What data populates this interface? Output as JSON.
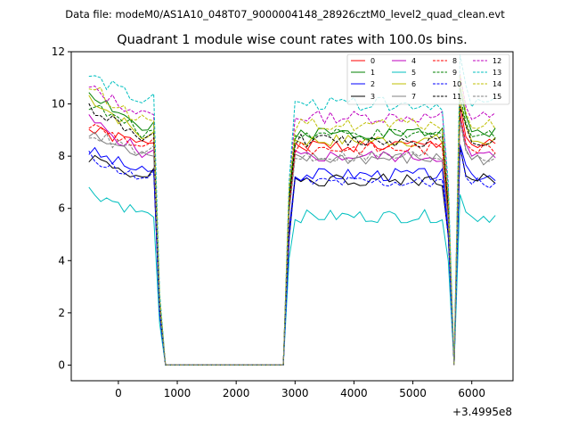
{
  "figure": {
    "suptitle": "Data file: modeM0/AS1A10_048T07_9000004148_28926cztM0_level2_quad_clean.evt"
  },
  "chart_data": {
    "type": "line",
    "title": "Quadrant 1 module wise count rates with 100.0s bins.",
    "xlabel": "",
    "ylabel": "",
    "x_offset_label": "+3.4995e8",
    "xlim": [
      -800,
      6700
    ],
    "ylim": [
      -0.6,
      12.0
    ],
    "x_ticks": [
      0,
      1000,
      2000,
      3000,
      4000,
      5000,
      6000
    ],
    "y_ticks": [
      0,
      2,
      4,
      6,
      8,
      10,
      12
    ],
    "grid": false,
    "legend_location": "upper-right",
    "legend_columns": 4,
    "x": [
      -500,
      -400,
      -300,
      -200,
      -100,
      0,
      100,
      200,
      300,
      400,
      500,
      600,
      700,
      800,
      900,
      1000,
      1100,
      1200,
      1300,
      1400,
      1500,
      1600,
      1700,
      1800,
      1900,
      2000,
      2100,
      2200,
      2300,
      2400,
      2500,
      2600,
      2700,
      2800,
      2900,
      3000,
      3100,
      3200,
      3300,
      3400,
      3500,
      3600,
      3700,
      3800,
      3900,
      4000,
      4100,
      4200,
      4300,
      4400,
      4500,
      4600,
      4700,
      4800,
      4900,
      5000,
      5100,
      5200,
      5300,
      5400,
      5500,
      5600,
      5700,
      5800,
      5900,
      6000,
      6100,
      6200,
      6300,
      6400
    ],
    "gaps": [
      {
        "name": "gap-a",
        "start": 800,
        "end": 2800,
        "value": 0
      },
      {
        "name": "gap-b",
        "start": 5700,
        "end": 5700,
        "value": 0
      }
    ],
    "series": [
      {
        "name": "0",
        "color": "#ff0000",
        "dash": "solid",
        "level": 8.4,
        "start": 9.0,
        "amp": 0.25,
        "seed": 1
      },
      {
        "name": "1",
        "color": "#008000",
        "dash": "solid",
        "level": 8.9,
        "start": 10.5,
        "amp": 0.25,
        "seed": 2
      },
      {
        "name": "2",
        "color": "#0000ff",
        "dash": "solid",
        "level": 7.3,
        "start": 8.2,
        "amp": 0.25,
        "seed": 3
      },
      {
        "name": "3",
        "color": "#000000",
        "dash": "solid",
        "level": 7.1,
        "start": 8.0,
        "amp": 0.25,
        "seed": 4
      },
      {
        "name": "4",
        "color": "#bf00bf",
        "dash": "solid",
        "level": 8.0,
        "start": 9.4,
        "amp": 0.25,
        "seed": 5
      },
      {
        "name": "5",
        "color": "#00bfbf",
        "dash": "solid",
        "level": 5.7,
        "start": 6.7,
        "amp": 0.25,
        "seed": 6
      },
      {
        "name": "6",
        "color": "#bfbf00",
        "dash": "solid",
        "level": 8.6,
        "start": 10.3,
        "amp": 0.25,
        "seed": 7
      },
      {
        "name": "7",
        "color": "#808080",
        "dash": "solid",
        "level": 7.9,
        "start": 8.8,
        "amp": 0.25,
        "seed": 8
      },
      {
        "name": "8",
        "color": "#ff0000",
        "dash": "dashed",
        "level": 8.3,
        "start": 9.2,
        "amp": 0.25,
        "seed": 9
      },
      {
        "name": "9",
        "color": "#008000",
        "dash": "dashed",
        "level": 8.8,
        "start": 10.0,
        "amp": 0.25,
        "seed": 10
      },
      {
        "name": "10",
        "color": "#0000ff",
        "dash": "dashed",
        "level": 7.0,
        "start": 8.0,
        "amp": 0.25,
        "seed": 11
      },
      {
        "name": "11",
        "color": "#000000",
        "dash": "dashed",
        "level": 8.6,
        "start": 9.9,
        "amp": 0.25,
        "seed": 12
      },
      {
        "name": "12",
        "color": "#bf00bf",
        "dash": "dashed",
        "level": 9.5,
        "start": 10.6,
        "amp": 0.25,
        "seed": 13
      },
      {
        "name": "13",
        "color": "#00bfbf",
        "dash": "dashed",
        "level": 10.0,
        "start": 11.1,
        "amp": 0.25,
        "seed": 14
      },
      {
        "name": "14",
        "color": "#bfbf00",
        "dash": "dashed",
        "level": 9.2,
        "start": 10.7,
        "amp": 0.25,
        "seed": 15
      },
      {
        "name": "15",
        "color": "#808080",
        "dash": "dashed",
        "level": 8.0,
        "start": 8.9,
        "amp": 0.25,
        "seed": 16
      }
    ]
  }
}
